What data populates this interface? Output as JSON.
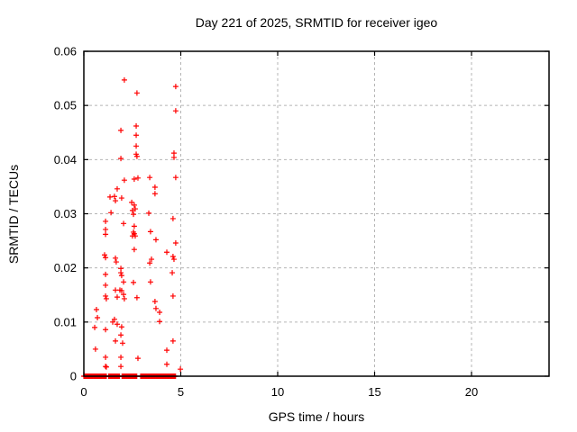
{
  "chart_data": {
    "type": "scatter",
    "title": "Day 221 of 2025, SRMTID for receiver igeo",
    "xlabel": "GPS time / hours",
    "ylabel": "SRMTID / TECUs",
    "xlim": [
      0,
      24
    ],
    "ylim": [
      0,
      0.06
    ],
    "xticks": [
      0,
      5,
      10,
      15,
      20
    ],
    "xtick_labels": [
      "0",
      "5",
      "10",
      "15",
      "20"
    ],
    "yticks": [
      0,
      0.01,
      0.02,
      0.03,
      0.04,
      0.05,
      0.06
    ],
    "ytick_labels": [
      "0",
      "0.01",
      "0.02",
      "0.03",
      "0.04",
      "0.05",
      "0.06"
    ],
    "grid": true,
    "grid_style": "dashed",
    "legend": "none",
    "marker": "plus",
    "colors": {
      "marker": "#ff0000",
      "grid": "#b5b5b5",
      "border": "#000000",
      "background": "#ffffff"
    },
    "series_name": "SRMTID",
    "points": [
      [
        2.09,
        0.0547
      ],
      [
        2.74,
        0.0523
      ],
      [
        4.74,
        0.0535
      ],
      [
        4.74,
        0.049
      ],
      [
        1.91,
        0.0454
      ],
      [
        2.7,
        0.0462
      ],
      [
        2.7,
        0.0445
      ],
      [
        2.7,
        0.0425
      ],
      [
        2.7,
        0.041
      ],
      [
        2.74,
        0.0406
      ],
      [
        1.91,
        0.0402
      ],
      [
        4.65,
        0.0412
      ],
      [
        4.65,
        0.0404
      ],
      [
        2.09,
        0.0362
      ],
      [
        2.6,
        0.0364
      ],
      [
        2.79,
        0.0366
      ],
      [
        3.4,
        0.0367
      ],
      [
        4.74,
        0.0367
      ],
      [
        1.72,
        0.0346
      ],
      [
        3.67,
        0.0349
      ],
      [
        3.67,
        0.0337
      ],
      [
        1.35,
        0.0331
      ],
      [
        1.58,
        0.0332
      ],
      [
        1.63,
        0.0324
      ],
      [
        1.95,
        0.0329
      ],
      [
        2.47,
        0.0321
      ],
      [
        2.6,
        0.0316
      ],
      [
        2.65,
        0.0309
      ],
      [
        2.51,
        0.0306
      ],
      [
        2.56,
        0.0299
      ],
      [
        3.35,
        0.0301
      ],
      [
        1.4,
        0.0302
      ],
      [
        4.6,
        0.0291
      ],
      [
        1.12,
        0.0286
      ],
      [
        2.05,
        0.0282
      ],
      [
        2.6,
        0.0277
      ],
      [
        2.56,
        0.0266
      ],
      [
        2.6,
        0.0263
      ],
      [
        2.51,
        0.0259
      ],
      [
        2.65,
        0.0259
      ],
      [
        3.44,
        0.0267
      ],
      [
        1.12,
        0.0271
      ],
      [
        1.12,
        0.0262
      ],
      [
        3.72,
        0.0252
      ],
      [
        4.74,
        0.0246
      ],
      [
        2.6,
        0.0234
      ],
      [
        4.28,
        0.0229
      ],
      [
        1.07,
        0.0224
      ],
      [
        1.12,
        0.0219
      ],
      [
        1.63,
        0.0218
      ],
      [
        1.67,
        0.0211
      ],
      [
        4.6,
        0.0221
      ],
      [
        4.65,
        0.0216
      ],
      [
        3.49,
        0.0216
      ],
      [
        3.4,
        0.0209
      ],
      [
        1.91,
        0.0199
      ],
      [
        1.12,
        0.0188
      ],
      [
        1.91,
        0.0191
      ],
      [
        1.95,
        0.0186
      ],
      [
        4.56,
        0.0191
      ],
      [
        2.05,
        0.0174
      ],
      [
        2.56,
        0.0173
      ],
      [
        3.44,
        0.0174
      ],
      [
        1.12,
        0.0168
      ],
      [
        1.86,
        0.0159
      ],
      [
        1.63,
        0.0159
      ],
      [
        1.95,
        0.0158
      ],
      [
        2.05,
        0.0151
      ],
      [
        1.12,
        0.0148
      ],
      [
        1.16,
        0.0143
      ],
      [
        1.72,
        0.0146
      ],
      [
        2.09,
        0.0143
      ],
      [
        2.74,
        0.0145
      ],
      [
        4.6,
        0.0148
      ],
      [
        3.67,
        0.0138
      ],
      [
        0.65,
        0.0123
      ],
      [
        3.72,
        0.0125
      ],
      [
        3.91,
        0.0118
      ],
      [
        0.7,
        0.0108
      ],
      [
        1.58,
        0.0105
      ],
      [
        1.49,
        0.01
      ],
      [
        1.72,
        0.0096
      ],
      [
        1.95,
        0.0091
      ],
      [
        3.91,
        0.0101
      ],
      [
        0.56,
        0.009
      ],
      [
        1.12,
        0.0086
      ],
      [
        1.91,
        0.0076
      ],
      [
        1.63,
        0.0065
      ],
      [
        2.0,
        0.0061
      ],
      [
        4.6,
        0.0065
      ],
      [
        0.6,
        0.005
      ],
      [
        4.28,
        0.0048
      ],
      [
        1.12,
        0.0035
      ],
      [
        1.91,
        0.0035
      ],
      [
        2.79,
        0.0033
      ],
      [
        1.12,
        0.0018
      ],
      [
        1.91,
        0.0018
      ],
      [
        1.16,
        0.0017
      ],
      [
        4.28,
        0.0022
      ],
      [
        4.98,
        0.0013
      ]
    ],
    "zero_band_runs": [
      [
        0.0,
        1.16
      ],
      [
        1.28,
        1.86
      ],
      [
        1.97,
        2.74
      ],
      [
        2.93,
        4.74
      ]
    ],
    "zero_band_value": 0,
    "zero_band_step": 0.04
  }
}
